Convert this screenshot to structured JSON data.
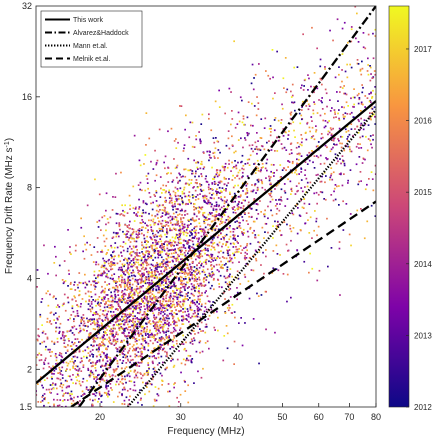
{
  "chart_data": {
    "type": "scatter",
    "xlabel": "Frequency (MHz)",
    "ylabel": "Frequency Drift Rate (MHz s",
    "ylabel_sup": "-1",
    "ylabel_close": ")",
    "xscale": "log",
    "yscale": "log",
    "xlim": [
      14.5,
      80
    ],
    "ylim": [
      1.5,
      32
    ],
    "x_ticks": [
      {
        "value": 20,
        "label": "20"
      },
      {
        "value": 30,
        "label": "30"
      },
      {
        "value": 40,
        "label": "40"
      },
      {
        "value": 50,
        "label": "50"
      },
      {
        "value": 60,
        "label": "60"
      },
      {
        "value": 70,
        "label": "70"
      },
      {
        "value": 80,
        "label": "80"
      }
    ],
    "y_ticks": [
      {
        "value": 1.5,
        "label": "1.5"
      },
      {
        "value": 2,
        "label": "2"
      },
      {
        "value": 4,
        "label": "4"
      },
      {
        "value": 8,
        "label": "8"
      },
      {
        "value": 16,
        "label": "16"
      },
      {
        "value": 32,
        "label": "32"
      }
    ],
    "legend_position": "top-left",
    "grid": false,
    "series": [
      {
        "name": "This work",
        "dash": "solid",
        "color": "#000000",
        "x": [
          14.5,
          80
        ],
        "y": [
          1.8,
          15.5
        ]
      },
      {
        "name": "Alvarez&Haddock",
        "dash": "dashdot",
        "color": "#000000",
        "x": [
          18.0,
          80
        ],
        "y": [
          1.5,
          32
        ]
      },
      {
        "name": "Mann et.al.",
        "dash": "dotted",
        "color": "#000000",
        "x": [
          23.0,
          80
        ],
        "y": [
          1.5,
          14.5
        ]
      },
      {
        "name": "Melnik et.al.",
        "dash": "dashed",
        "color": "#000000",
        "x": [
          17.3,
          80
        ],
        "y": [
          1.5,
          7.2
        ]
      }
    ],
    "scatter": {
      "n_points": 5200,
      "x_range_mhz": [
        14.5,
        80
      ],
      "trend_x": [
        14.5,
        80
      ],
      "trend_y": [
        1.8,
        15.5
      ],
      "spread_log10": 0.17
    },
    "colorbar": {
      "colormap": "plasma",
      "range": [
        2012,
        2017.6
      ],
      "colors": [
        "#0d0887",
        "#7e03a8",
        "#cc4778",
        "#f89540",
        "#f0f921"
      ],
      "ticks": [
        {
          "value": 2012,
          "label": "2012"
        },
        {
          "value": 2013,
          "label": "2013"
        },
        {
          "value": 2014,
          "label": "2014"
        },
        {
          "value": 2015,
          "label": "2015"
        },
        {
          "value": 2016,
          "label": "2016"
        },
        {
          "value": 2017,
          "label": "2017"
        }
      ]
    }
  }
}
